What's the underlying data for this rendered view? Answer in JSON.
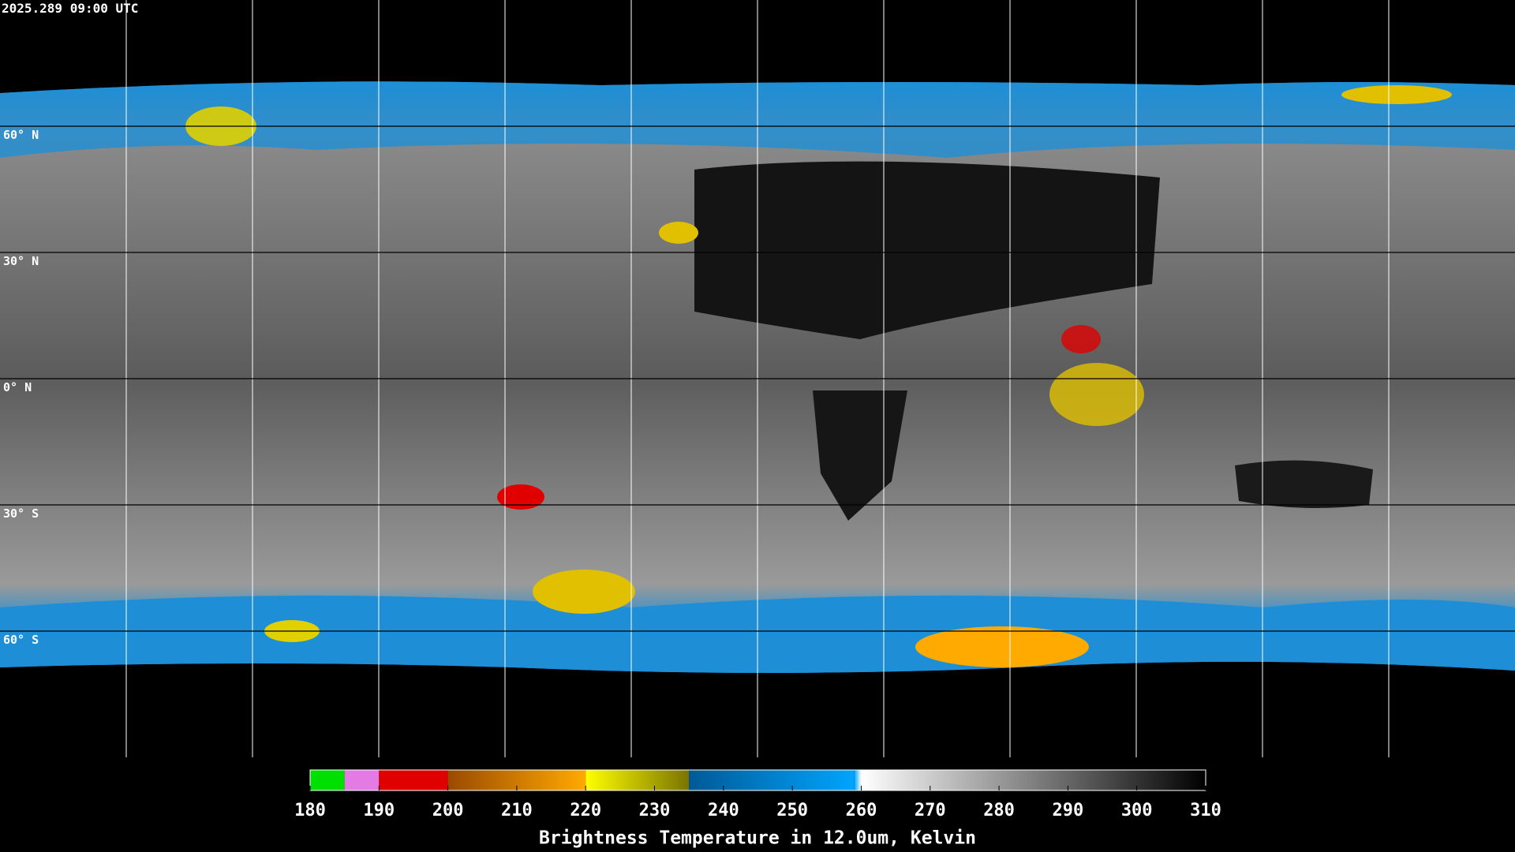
{
  "timestamp": "2025.289 09:00 UTC",
  "lat_grid": [
    {
      "value": 60,
      "label": "60° N"
    },
    {
      "value": 30,
      "label": "30° N"
    },
    {
      "value": 0,
      "label": "0° N"
    },
    {
      "value": -30,
      "label": "30° S"
    },
    {
      "value": -60,
      "label": "60° S"
    }
  ],
  "colorbar": {
    "title": "Brightness Temperature in 12.0um, Kelvin",
    "lim": [
      180,
      310
    ],
    "ticks": [
      180,
      190,
      200,
      210,
      220,
      230,
      240,
      250,
      260,
      270,
      280,
      290,
      300,
      310
    ],
    "colormap": [
      {
        "value": 180,
        "color": "#00e000"
      },
      {
        "value": 185,
        "color": "#00e000"
      },
      {
        "value": 185,
        "color": "#e47ae4"
      },
      {
        "value": 190,
        "color": "#e47ae4"
      },
      {
        "value": 190,
        "color": "#e00000"
      },
      {
        "value": 200,
        "color": "#e00000"
      },
      {
        "value": 200,
        "color": "#9a4a00"
      },
      {
        "value": 220,
        "color": "#ffaa00"
      },
      {
        "value": 220,
        "color": "#ffff00"
      },
      {
        "value": 235,
        "color": "#7a7400"
      },
      {
        "value": 235,
        "color": "#005a96"
      },
      {
        "value": 259,
        "color": "#00a4ff"
      },
      {
        "value": 260,
        "color": "#ffffff"
      },
      {
        "value": 310,
        "color": "#000000"
      }
    ]
  }
}
